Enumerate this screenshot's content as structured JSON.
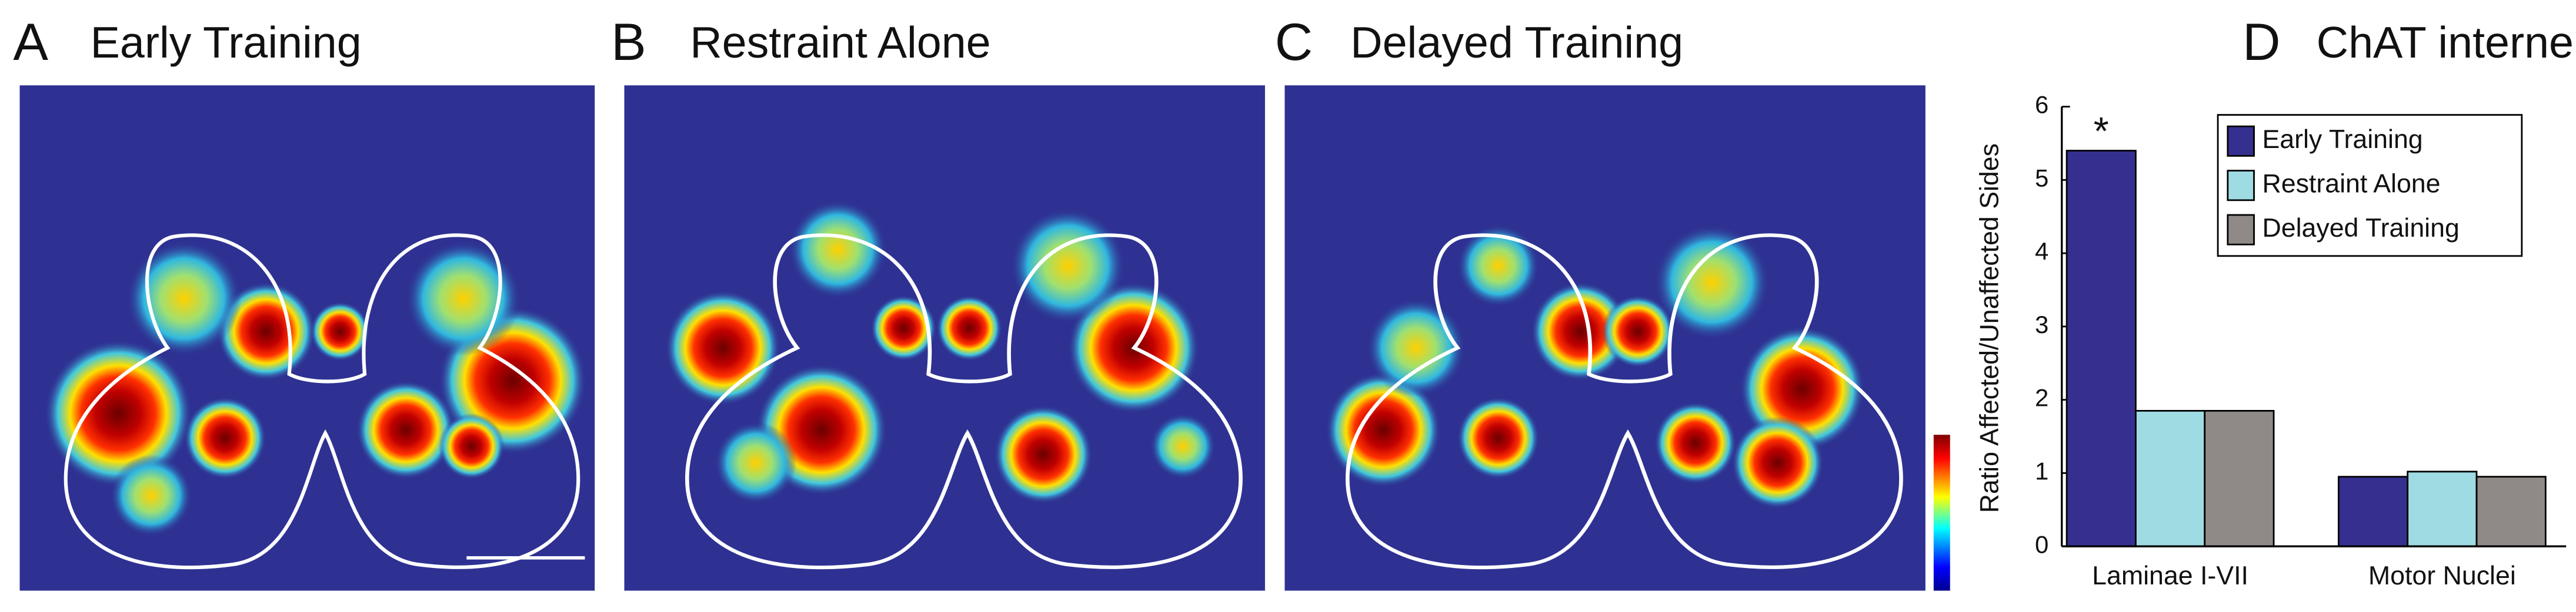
{
  "panels": [
    {
      "letter": "A",
      "title": "Early Training"
    },
    {
      "letter": "B",
      "title": "Restraint Alone"
    },
    {
      "letter": "C",
      "title": "Delayed Training"
    }
  ],
  "chart_data": {
    "type": "bar",
    "panel_label": "D",
    "title": "ChAT interneurons",
    "y_label": "Ratio Affected/Unaffected Sides",
    "categories": [
      "Laminae I-VII",
      "Motor Nuclei"
    ],
    "series": [
      {
        "name": "Early Training",
        "color": "#35308f",
        "values": [
          5.4,
          0.95
        ]
      },
      {
        "name": "Restraint Alone",
        "color": "#9fdbe3",
        "values": [
          1.85,
          1.02
        ]
      },
      {
        "name": "Delayed Training",
        "color": "#8f8a88",
        "values": [
          1.85,
          0.95
        ]
      }
    ],
    "annotation": "*",
    "ylim": [
      0,
      6
    ],
    "yticks": [
      0,
      1,
      2,
      3,
      4,
      5,
      6
    ]
  }
}
